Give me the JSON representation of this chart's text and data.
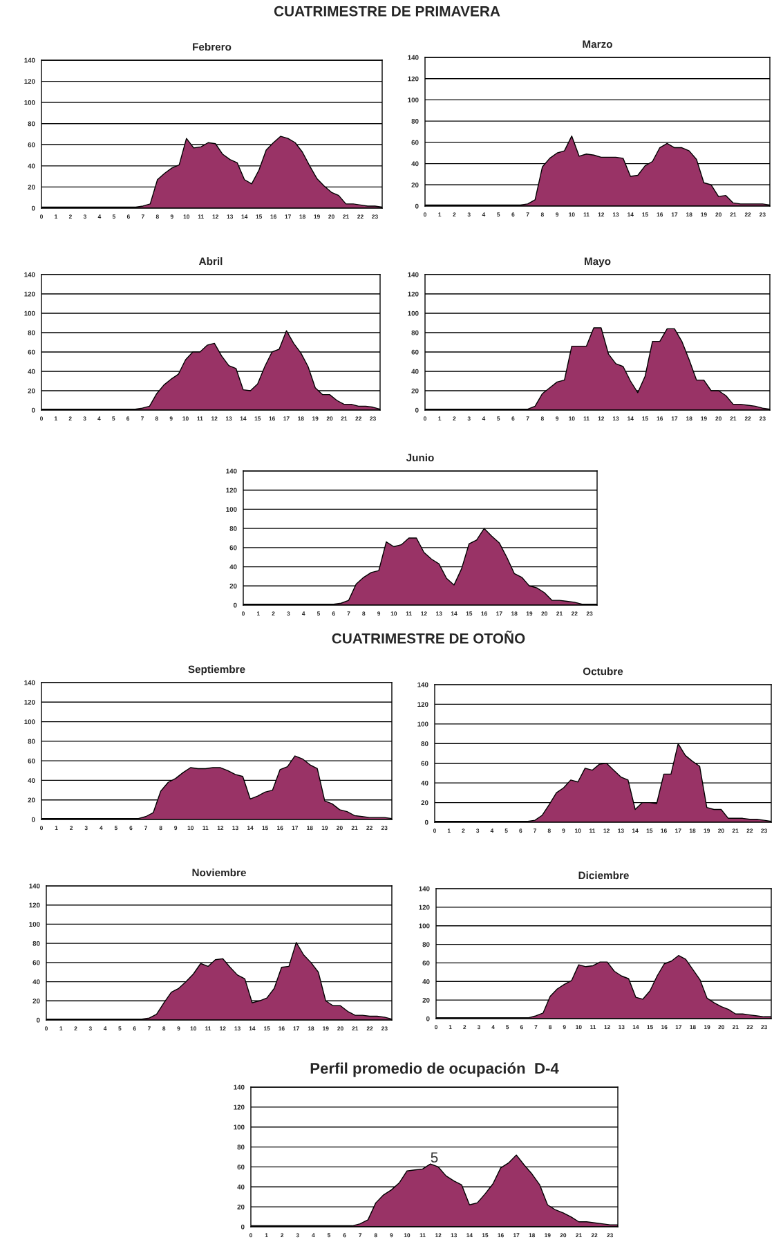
{
  "chart_data": [
    {
      "type": "area",
      "title": "Febrero",
      "annotations": [
        "CUATRIMESTRE DE PRIMAVERA"
      ],
      "categories": [
        "0",
        null,
        "1",
        null,
        "2",
        null,
        "3",
        null,
        "4",
        null,
        "5",
        null,
        "6",
        null,
        "7",
        null,
        "8",
        null,
        "9",
        null,
        "10",
        null,
        "11",
        null,
        "12",
        null,
        "13",
        null,
        "14",
        null,
        "15",
        null,
        "16",
        null,
        "17",
        null,
        "18",
        null,
        "19",
        null,
        "20",
        null,
        "21",
        null,
        "22",
        null,
        "23",
        null
      ],
      "ylim": [
        0,
        140
      ],
      "yticks": [
        0,
        20,
        40,
        60,
        80,
        100,
        120,
        140
      ],
      "grid": "y",
      "series": [
        {
          "color": "#993366",
          "values": [
            1,
            1,
            1,
            1,
            1,
            1,
            1,
            1,
            1,
            1,
            1,
            1,
            1,
            1,
            2,
            4,
            27,
            33,
            38,
            41,
            66,
            57,
            58,
            62,
            61,
            51,
            46,
            43,
            27,
            23,
            36,
            55,
            62,
            68,
            66,
            62,
            53,
            40,
            28,
            21,
            15,
            12,
            4,
            4,
            3,
            2,
            2,
            1
          ]
        }
      ]
    },
    {
      "type": "area",
      "title": "Marzo",
      "categories": [
        "0",
        null,
        "1",
        null,
        "2",
        null,
        "3",
        null,
        "4",
        null,
        "5",
        null,
        "6",
        null,
        "7",
        null,
        "8",
        null,
        "9",
        null,
        "10",
        null,
        "11",
        null,
        "12",
        null,
        "13",
        null,
        "14",
        null,
        "15",
        null,
        "16",
        null,
        "17",
        null,
        "18",
        null,
        "19",
        null,
        "20",
        null,
        "21",
        null,
        "22",
        null,
        "23",
        null
      ],
      "ylim": [
        0,
        140
      ],
      "yticks": [
        0,
        20,
        40,
        60,
        80,
        100,
        120,
        140
      ],
      "grid": "y",
      "series": [
        {
          "color": "#993366",
          "values": [
            1,
            1,
            1,
            1,
            1,
            1,
            1,
            1,
            1,
            1,
            1,
            1,
            1,
            1,
            2,
            6,
            37,
            45,
            50,
            52,
            66,
            47,
            49,
            48,
            46,
            46,
            46,
            45,
            28,
            29,
            38,
            42,
            55,
            59,
            55,
            55,
            52,
            44,
            22,
            20,
            9,
            10,
            3,
            2,
            2,
            2,
            2,
            1
          ]
        }
      ]
    },
    {
      "type": "area",
      "title": "Abril",
      "categories": [
        "0",
        null,
        "1",
        null,
        "2",
        null,
        "3",
        null,
        "4",
        null,
        "5",
        null,
        "6",
        null,
        "7",
        null,
        "8",
        null,
        "9",
        null,
        "10",
        null,
        "11",
        null,
        "12",
        null,
        "13",
        null,
        "14",
        null,
        "15",
        null,
        "16",
        null,
        "17",
        null,
        "18",
        null,
        "19",
        null,
        "20",
        null,
        "21",
        null,
        "22",
        null,
        "23",
        null
      ],
      "ylim": [
        0,
        140
      ],
      "yticks": [
        0,
        20,
        40,
        60,
        80,
        100,
        120,
        140
      ],
      "grid": "y",
      "series": [
        {
          "color": "#993366",
          "values": [
            1,
            1,
            1,
            1,
            1,
            1,
            1,
            1,
            1,
            1,
            1,
            1,
            1,
            1,
            2,
            4,
            17,
            26,
            32,
            37,
            52,
            60,
            60,
            67,
            69,
            56,
            46,
            43,
            21,
            20,
            27,
            45,
            60,
            63,
            82,
            69,
            59,
            45,
            23,
            16,
            16,
            10,
            6,
            6,
            4,
            4,
            3,
            1
          ]
        }
      ]
    },
    {
      "type": "area",
      "title": "Mayo",
      "categories": [
        "0",
        null,
        "1",
        null,
        "2",
        null,
        "3",
        null,
        "4",
        null,
        "5",
        null,
        "6",
        null,
        "7",
        null,
        "8",
        null,
        "9",
        null,
        "10",
        null,
        "11",
        null,
        "12",
        null,
        "13",
        null,
        "14",
        null,
        "15",
        null,
        "16",
        null,
        "17",
        null,
        "18",
        null,
        "19",
        null,
        "20",
        null,
        "21",
        null,
        "22",
        null,
        "23",
        null
      ],
      "ylim": [
        0,
        140
      ],
      "yticks": [
        0,
        20,
        40,
        60,
        80,
        100,
        120,
        140
      ],
      "grid": "y",
      "series": [
        {
          "color": "#993366",
          "values": [
            1,
            1,
            1,
            1,
            1,
            1,
            1,
            1,
            1,
            1,
            1,
            1,
            1,
            1,
            1,
            4,
            17,
            23,
            29,
            31,
            66,
            66,
            66,
            85,
            85,
            58,
            48,
            45,
            30,
            18,
            35,
            71,
            71,
            84,
            84,
            71,
            52,
            31,
            31,
            20,
            20,
            15,
            6,
            6,
            5,
            4,
            2,
            1
          ]
        }
      ]
    },
    {
      "type": "area",
      "title": "Junio",
      "categories": [
        "0",
        null,
        "1",
        null,
        "2",
        null,
        "3",
        null,
        "4",
        null,
        "5",
        null,
        "6",
        null,
        "7",
        null,
        "8",
        null,
        "9",
        null,
        "10",
        null,
        "11",
        null,
        "12",
        null,
        "13",
        null,
        "14",
        null,
        "15",
        null,
        "16",
        null,
        "17",
        null,
        "18",
        null,
        "19",
        null,
        "20",
        null,
        "21",
        null,
        "22",
        null,
        "23",
        null
      ],
      "ylim": [
        0,
        140
      ],
      "yticks": [
        0,
        20,
        40,
        60,
        80,
        100,
        120,
        140
      ],
      "grid": "y",
      "series": [
        {
          "color": "#993366",
          "values": [
            1,
            1,
            1,
            1,
            1,
            1,
            1,
            1,
            1,
            1,
            1,
            1,
            1,
            2,
            5,
            22,
            29,
            34,
            36,
            66,
            61,
            63,
            70,
            70,
            55,
            48,
            43,
            28,
            21,
            38,
            64,
            68,
            80,
            72,
            65,
            50,
            33,
            29,
            20,
            18,
            13,
            5,
            5,
            4,
            3,
            1,
            1,
            1
          ]
        }
      ]
    },
    {
      "type": "area",
      "title": "Septiembre",
      "annotations": [
        "CUATRIMESTRE DE OTOÑO"
      ],
      "categories": [
        "0",
        null,
        "1",
        null,
        "2",
        null,
        "3",
        null,
        "4",
        null,
        "5",
        null,
        "6",
        null,
        "7",
        null,
        "8",
        null,
        "9",
        null,
        "10",
        null,
        "11",
        null,
        "12",
        null,
        "13",
        null,
        "14",
        null,
        "15",
        null,
        "16",
        null,
        "17",
        null,
        "18",
        null,
        "19",
        null,
        "20",
        null,
        "21",
        null,
        "22",
        null,
        "23",
        null
      ],
      "ylim": [
        0,
        140
      ],
      "yticks": [
        0,
        20,
        40,
        60,
        80,
        100,
        120,
        140
      ],
      "grid": "y",
      "series": [
        {
          "color": "#993366",
          "values": [
            1,
            1,
            1,
            1,
            1,
            1,
            1,
            1,
            1,
            1,
            1,
            1,
            1,
            1,
            3,
            7,
            29,
            38,
            42,
            48,
            53,
            52,
            52,
            53,
            53,
            50,
            46,
            44,
            21,
            24,
            28,
            30,
            51,
            54,
            65,
            62,
            56,
            52,
            19,
            16,
            10,
            8,
            4,
            3,
            2,
            2,
            2,
            1
          ]
        }
      ]
    },
    {
      "type": "area",
      "title": "Octubre",
      "categories": [
        "0",
        null,
        "1",
        null,
        "2",
        null,
        "3",
        null,
        "4",
        null,
        "5",
        null,
        "6",
        null,
        "7",
        null,
        "8",
        null,
        "9",
        null,
        "10",
        null,
        "11",
        null,
        "12",
        null,
        "13",
        null,
        "14",
        null,
        "15",
        null,
        "16",
        null,
        "17",
        null,
        "18",
        null,
        "19",
        null,
        "20",
        null,
        "21",
        null,
        "22",
        null,
        "23",
        null
      ],
      "ylim": [
        0,
        140
      ],
      "yticks": [
        0,
        20,
        40,
        60,
        80,
        100,
        120,
        140
      ],
      "grid": "y",
      "series": [
        {
          "color": "#993366",
          "values": [
            1,
            1,
            1,
            1,
            1,
            1,
            1,
            1,
            1,
            1,
            1,
            1,
            1,
            1,
            2,
            7,
            18,
            30,
            35,
            43,
            41,
            55,
            53,
            59,
            60,
            53,
            46,
            43,
            13,
            20,
            20,
            19,
            49,
            49,
            80,
            68,
            62,
            57,
            15,
            13,
            13,
            4,
            4,
            4,
            3,
            3,
            2,
            1
          ]
        }
      ]
    },
    {
      "type": "area",
      "title": "Noviembre",
      "categories": [
        "0",
        null,
        "1",
        null,
        "2",
        null,
        "3",
        null,
        "4",
        null,
        "5",
        null,
        "6",
        null,
        "7",
        null,
        "8",
        null,
        "9",
        null,
        "10",
        null,
        "11",
        null,
        "12",
        null,
        "13",
        null,
        "14",
        null,
        "15",
        null,
        "16",
        null,
        "17",
        null,
        "18",
        null,
        "19",
        null,
        "20",
        null,
        "21",
        null,
        "22",
        null,
        "23",
        null
      ],
      "ylim": [
        0,
        140
      ],
      "yticks": [
        0,
        20,
        40,
        60,
        80,
        100,
        120,
        140
      ],
      "grid": "y",
      "series": [
        {
          "color": "#993366",
          "values": [
            1,
            1,
            1,
            1,
            1,
            1,
            1,
            1,
            1,
            1,
            1,
            1,
            1,
            1,
            2,
            6,
            18,
            29,
            33,
            40,
            48,
            59,
            56,
            63,
            64,
            55,
            47,
            43,
            18,
            20,
            23,
            33,
            55,
            56,
            81,
            68,
            60,
            50,
            20,
            15,
            15,
            9,
            5,
            5,
            4,
            4,
            3,
            1
          ]
        }
      ]
    },
    {
      "type": "area",
      "title": "Diciembre",
      "categories": [
        "0",
        null,
        "1",
        null,
        "2",
        null,
        "3",
        null,
        "4",
        null,
        "5",
        null,
        "6",
        null,
        "7",
        null,
        "8",
        null,
        "9",
        null,
        "10",
        null,
        "11",
        null,
        "12",
        null,
        "13",
        null,
        "14",
        null,
        "15",
        null,
        "16",
        null,
        "17",
        null,
        "18",
        null,
        "19",
        null,
        "20",
        null,
        "21",
        null,
        "22",
        null,
        "23",
        null
      ],
      "ylim": [
        0,
        140
      ],
      "yticks": [
        0,
        20,
        40,
        60,
        80,
        100,
        120,
        140
      ],
      "grid": "y",
      "series": [
        {
          "color": "#993366",
          "values": [
            1,
            1,
            1,
            1,
            1,
            1,
            1,
            1,
            1,
            1,
            1,
            1,
            1,
            1,
            3,
            6,
            24,
            32,
            37,
            41,
            58,
            56,
            57,
            61,
            61,
            51,
            46,
            43,
            23,
            21,
            30,
            46,
            59,
            62,
            68,
            64,
            53,
            42,
            22,
            17,
            13,
            10,
            5,
            5,
            4,
            3,
            2,
            2
          ]
        }
      ]
    },
    {
      "type": "area",
      "title": "Perfil promedio de ocupación  D-4",
      "annotations": [
        "5"
      ],
      "categories": [
        "0",
        null,
        "1",
        null,
        "2",
        null,
        "3",
        null,
        "4",
        null,
        "5",
        null,
        "6",
        null,
        "7",
        null,
        "8",
        null,
        "9",
        null,
        "10",
        null,
        "11",
        null,
        "12",
        null,
        "13",
        null,
        "14",
        null,
        "15",
        null,
        "16",
        null,
        "17",
        null,
        "18",
        null,
        "19",
        null,
        "20",
        null,
        "21",
        null,
        "22",
        null,
        "23",
        null
      ],
      "ylim": [
        0,
        140
      ],
      "yticks": [
        0,
        20,
        40,
        60,
        80,
        100,
        120,
        140
      ],
      "grid": "y",
      "series": [
        {
          "color": "#993366",
          "values": [
            1,
            1,
            1,
            1,
            1,
            1,
            1,
            1,
            1,
            1,
            1,
            1,
            1,
            1,
            3,
            7,
            24,
            32,
            37,
            44,
            56,
            57,
            58,
            63,
            60,
            51,
            46,
            42,
            22,
            24,
            33,
            43,
            59,
            64,
            72,
            62,
            53,
            42,
            22,
            17,
            14,
            10,
            5,
            5,
            4,
            3,
            2,
            2
          ]
        }
      ]
    }
  ]
}
